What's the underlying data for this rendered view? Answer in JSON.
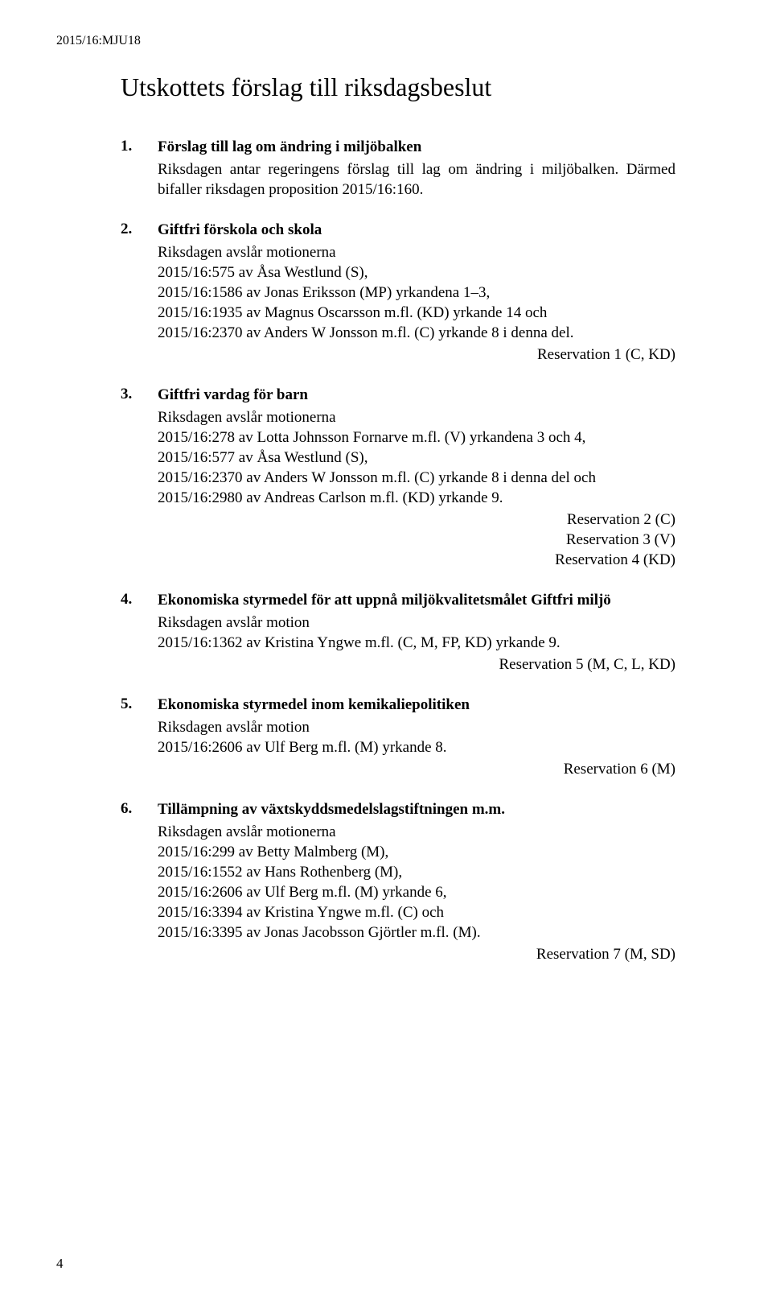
{
  "doc_id": "2015/16:MJU18",
  "title": "Utskottets förslag till riksdagsbeslut",
  "items": [
    {
      "num": "1.",
      "heading": "Förslag till lag om ändring i miljöbalken",
      "body": "Riksdagen antar regeringens förslag till lag om ändring i miljöbalken. Därmed bifaller riksdagen proposition 2015/16:160.",
      "reservations": []
    },
    {
      "num": "2.",
      "heading": "Giftfri förskola och skola",
      "body": "Riksdagen avslår motionerna\n2015/16:575 av Åsa Westlund (S),\n2015/16:1586 av Jonas Eriksson (MP) yrkandena 1–3,\n2015/16:1935 av Magnus Oscarsson m.fl. (KD) yrkande 14 och\n2015/16:2370 av Anders W Jonsson m.fl. (C) yrkande 8 i denna del.",
      "reservations": [
        "Reservation 1 (C, KD)"
      ]
    },
    {
      "num": "3.",
      "heading": "Giftfri vardag för barn",
      "body": "Riksdagen avslår motionerna\n2015/16:278 av Lotta Johnsson Fornarve m.fl. (V) yrkandena 3 och 4,\n2015/16:577 av Åsa Westlund (S),\n2015/16:2370 av Anders W Jonsson m.fl. (C) yrkande 8 i denna del och\n2015/16:2980 av Andreas Carlson m.fl. (KD) yrkande 9.",
      "reservations": [
        "Reservation 2 (C)",
        "Reservation 3 (V)",
        "Reservation 4 (KD)"
      ]
    },
    {
      "num": "4.",
      "heading": "Ekonomiska styrmedel för att uppnå miljökvalitetsmålet Giftfri miljö",
      "body": "Riksdagen avslår motion\n2015/16:1362 av Kristina Yngwe m.fl. (C, M, FP, KD) yrkande 9.",
      "reservations": [
        "Reservation 5 (M, C, L, KD)"
      ]
    },
    {
      "num": "5.",
      "heading": "Ekonomiska styrmedel inom kemikaliepolitiken",
      "body": "Riksdagen avslår motion\n2015/16:2606 av Ulf Berg m.fl. (M) yrkande 8.",
      "reservations": [
        "Reservation 6 (M)"
      ]
    },
    {
      "num": "6.",
      "heading": "Tillämpning av växtskyddsmedelslagstiftningen m.m.",
      "body": "Riksdagen avslår motionerna\n2015/16:299 av Betty Malmberg (M),\n2015/16:1552 av Hans Rothenberg (M),\n2015/16:2606 av Ulf Berg m.fl. (M) yrkande 6,\n2015/16:3394 av Kristina Yngwe m.fl. (C) och\n2015/16:3395 av Jonas Jacobsson Gjörtler m.fl. (M).",
      "reservations": [
        "Reservation 7 (M, SD)"
      ]
    }
  ],
  "page_number": "4"
}
